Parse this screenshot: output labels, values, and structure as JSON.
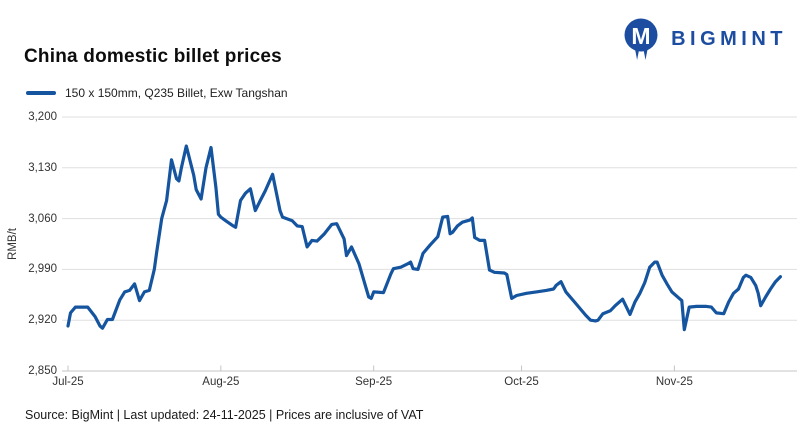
{
  "logo": {
    "text": "BIGMINT",
    "icon": "bigmint-m-logo"
  },
  "title": "China domestic billet prices",
  "legend": {
    "label": "150 x 150mm, Q235 Billet, Exw Tangshan"
  },
  "footer": "Source: BigMint | Last updated: 24-11-2025 | Prices are inclusive of VAT",
  "colors": {
    "line": "#15549f",
    "logo": "#1c4da0",
    "grid": "#dfdfdf",
    "axis": "#c4c4c4",
    "text": "#1a1a1a"
  },
  "chart_data": {
    "type": "line",
    "title": "China domestic billet prices",
    "ylabel": "RMB/t",
    "ylim": [
      2850,
      3200
    ],
    "y_ticks": [
      2850,
      2920,
      2990,
      3060,
      3130,
      3200
    ],
    "y_tick_labels": [
      "2,850",
      "2,920",
      "2,990",
      "3,060",
      "3,130",
      "3,200"
    ],
    "x_ticks": [
      {
        "label": "Jul-25",
        "day": 0
      },
      {
        "label": "Aug-25",
        "day": 31
      },
      {
        "label": "Sep-25",
        "day": 62
      },
      {
        "label": "Oct-25",
        "day": 92
      },
      {
        "label": "Nov-25",
        "day": 123
      }
    ],
    "x_axis_note": "day = offset from 1 Jul 2025; series ends 24-11-2025",
    "legend_position": "top-left",
    "grid": true,
    "series": [
      {
        "name": "150 x 150mm, Q235 Billet, Exw Tangshan",
        "points": [
          [
            0,
            2912
          ],
          [
            0.5,
            2930
          ],
          [
            1.5,
            2938
          ],
          [
            4,
            2938
          ],
          [
            5.5,
            2925
          ],
          [
            6.5,
            2912
          ],
          [
            7,
            2909
          ],
          [
            8,
            2921
          ],
          [
            9,
            2921
          ],
          [
            10.5,
            2948
          ],
          [
            11.5,
            2959
          ],
          [
            12.5,
            2961
          ],
          [
            13.5,
            2970
          ],
          [
            14.5,
            2947
          ],
          [
            15.5,
            2959
          ],
          [
            16.5,
            2961
          ],
          [
            17.5,
            2990
          ],
          [
            18,
            3014
          ],
          [
            19,
            3060
          ],
          [
            20,
            3085
          ],
          [
            21,
            3141
          ],
          [
            22,
            3115
          ],
          [
            22.5,
            3112
          ],
          [
            23,
            3130
          ],
          [
            24,
            3160
          ],
          [
            25.5,
            3120
          ],
          [
            26,
            3100
          ],
          [
            27,
            3087
          ],
          [
            28,
            3130
          ],
          [
            29,
            3158
          ],
          [
            30,
            3103
          ],
          [
            30.5,
            3066
          ],
          [
            31,
            3062
          ],
          [
            32,
            3057
          ],
          [
            33.5,
            3050
          ],
          [
            34,
            3048
          ],
          [
            35,
            3085
          ],
          [
            36,
            3095
          ],
          [
            37,
            3101
          ],
          [
            38,
            3071
          ],
          [
            39,
            3085
          ],
          [
            40,
            3098
          ],
          [
            41.5,
            3121
          ],
          [
            43,
            3071
          ],
          [
            43.5,
            3062
          ],
          [
            45.5,
            3057
          ],
          [
            46.5,
            3050
          ],
          [
            47.5,
            3049
          ],
          [
            48.5,
            3021
          ],
          [
            49.5,
            3030
          ],
          [
            50.5,
            3029
          ],
          [
            52,
            3039
          ],
          [
            53.5,
            3052
          ],
          [
            54.5,
            3053
          ],
          [
            56,
            3032
          ],
          [
            56.5,
            3009
          ],
          [
            57.5,
            3021
          ],
          [
            59,
            2998
          ],
          [
            60,
            2975
          ],
          [
            61,
            2952
          ],
          [
            61.5,
            2950
          ],
          [
            62,
            2959
          ],
          [
            64,
            2958
          ],
          [
            65.5,
            2984
          ],
          [
            66,
            2991
          ],
          [
            67.5,
            2993
          ],
          [
            69,
            2998
          ],
          [
            69.5,
            3000
          ],
          [
            70,
            2991
          ],
          [
            71,
            2990
          ],
          [
            72,
            3012
          ],
          [
            73.5,
            3024
          ],
          [
            75,
            3035
          ],
          [
            76,
            3062
          ],
          [
            77,
            3063
          ],
          [
            77.5,
            3039
          ],
          [
            78,
            3041
          ],
          [
            79,
            3050
          ],
          [
            80,
            3055
          ],
          [
            81.5,
            3058
          ],
          [
            82,
            3061
          ],
          [
            82.5,
            3034
          ],
          [
            83.5,
            3030
          ],
          [
            84.5,
            3030
          ],
          [
            85.5,
            2989
          ],
          [
            86.5,
            2986
          ],
          [
            88.5,
            2985
          ],
          [
            89,
            2983
          ],
          [
            90,
            2950
          ],
          [
            91,
            2954
          ],
          [
            93,
            2957
          ],
          [
            95,
            2959
          ],
          [
            97,
            2961
          ],
          [
            98.5,
            2963
          ],
          [
            99,
            2968
          ],
          [
            100,
            2973
          ],
          [
            101,
            2959
          ],
          [
            103,
            2943
          ],
          [
            105,
            2927
          ],
          [
            106,
            2920
          ],
          [
            107,
            2919
          ],
          [
            107.5,
            2920
          ],
          [
            108.5,
            2929
          ],
          [
            110,
            2933
          ],
          [
            111,
            2940
          ],
          [
            112.5,
            2949
          ],
          [
            114,
            2928
          ],
          [
            115,
            2945
          ],
          [
            116,
            2957
          ],
          [
            117,
            2972
          ],
          [
            118,
            2993
          ],
          [
            119,
            3000
          ],
          [
            119.5,
            3000
          ],
          [
            120.5,
            2982
          ],
          [
            121.5,
            2970
          ],
          [
            122.5,
            2959
          ],
          [
            124,
            2950
          ],
          [
            124.5,
            2947
          ],
          [
            125,
            2907
          ],
          [
            126,
            2938
          ],
          [
            127.5,
            2939
          ],
          [
            129.5,
            2939
          ],
          [
            130.5,
            2938
          ],
          [
            131.5,
            2930
          ],
          [
            133,
            2929
          ],
          [
            134,
            2945
          ],
          [
            135,
            2957
          ],
          [
            136,
            2963
          ],
          [
            137,
            2979
          ],
          [
            137.5,
            2982
          ],
          [
            138.5,
            2979
          ],
          [
            139.5,
            2968
          ],
          [
            140,
            2957
          ],
          [
            140.5,
            2940
          ],
          [
            141.5,
            2952
          ],
          [
            142.5,
            2963
          ],
          [
            143.5,
            2973
          ],
          [
            144.5,
            2980
          ]
        ]
      }
    ]
  }
}
